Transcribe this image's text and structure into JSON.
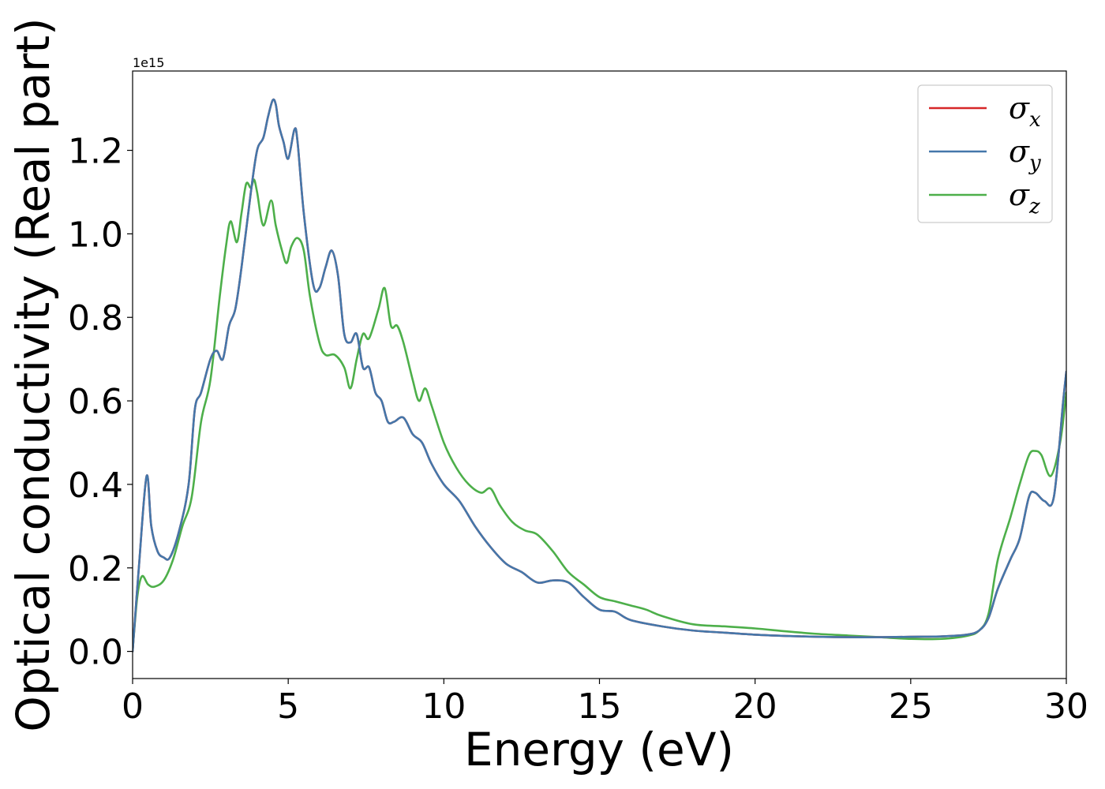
{
  "chart_data": {
    "type": "line",
    "title": "",
    "xlabel": "Energy (eV)",
    "ylabel": "Optical conductivity (Real part)",
    "y_offset_text": "1e15",
    "xlim": [
      0,
      30
    ],
    "ylim": [
      -0.065,
      1.39
    ],
    "x_ticks": [
      0,
      5,
      10,
      15,
      20,
      25,
      30
    ],
    "x_tick_labels": [
      "0",
      "5",
      "10",
      "15",
      "20",
      "25",
      "30"
    ],
    "y_ticks": [
      0.0,
      0.2,
      0.4,
      0.6,
      0.8,
      1.0,
      1.2
    ],
    "y_tick_labels": [
      "0.0",
      "0.2",
      "0.4",
      "0.6",
      "0.8",
      "1.0",
      "1.2"
    ],
    "grid": false,
    "legend_position": "top-right",
    "series": [
      {
        "name": "σx",
        "legend_symbol": "σ",
        "legend_subscript": "x",
        "color": "#d62728",
        "x": [
          0,
          0.2,
          0.45,
          0.6,
          0.8,
          1.0,
          1.2,
          1.5,
          1.8,
          2.0,
          2.2,
          2.5,
          2.7,
          2.9,
          3.1,
          3.3,
          3.5,
          3.8,
          4.0,
          4.2,
          4.35,
          4.5,
          4.6,
          4.7,
          4.85,
          5.0,
          5.2,
          5.3,
          5.5,
          5.8,
          6.0,
          6.2,
          6.4,
          6.6,
          6.8,
          7.0,
          7.2,
          7.4,
          7.6,
          7.8,
          8.0,
          8.2,
          8.4,
          8.7,
          9.0,
          9.3,
          9.6,
          10.0,
          10.5,
          11.0,
          11.5,
          12.0,
          12.5,
          13.0,
          13.5,
          14.0,
          14.5,
          15.0,
          15.5,
          16.0,
          17.0,
          18.0,
          19.0,
          20.0,
          21.0,
          22.0,
          23.0,
          24.0,
          25.0,
          26.0,
          26.8,
          27.2,
          27.5,
          27.8,
          28.2,
          28.5,
          28.8,
          29.0,
          29.3,
          29.6,
          29.9,
          30.0
        ],
        "y": [
          0.0,
          0.2,
          0.42,
          0.3,
          0.24,
          0.225,
          0.225,
          0.29,
          0.4,
          0.58,
          0.62,
          0.7,
          0.72,
          0.7,
          0.78,
          0.82,
          0.92,
          1.1,
          1.2,
          1.23,
          1.28,
          1.32,
          1.31,
          1.26,
          1.22,
          1.18,
          1.25,
          1.22,
          1.05,
          0.88,
          0.87,
          0.92,
          0.96,
          0.9,
          0.76,
          0.74,
          0.76,
          0.68,
          0.68,
          0.62,
          0.6,
          0.55,
          0.55,
          0.56,
          0.52,
          0.5,
          0.45,
          0.4,
          0.36,
          0.3,
          0.25,
          0.21,
          0.19,
          0.165,
          0.17,
          0.165,
          0.13,
          0.1,
          0.095,
          0.075,
          0.06,
          0.05,
          0.045,
          0.04,
          0.037,
          0.035,
          0.034,
          0.034,
          0.035,
          0.036,
          0.04,
          0.05,
          0.08,
          0.15,
          0.22,
          0.27,
          0.37,
          0.38,
          0.36,
          0.37,
          0.6,
          0.67
        ]
      },
      {
        "name": "σy",
        "legend_symbol": "σ",
        "legend_subscript": "y",
        "color": "#4477aa",
        "x": [
          0,
          0.2,
          0.45,
          0.6,
          0.8,
          1.0,
          1.2,
          1.5,
          1.8,
          2.0,
          2.2,
          2.5,
          2.7,
          2.9,
          3.1,
          3.3,
          3.5,
          3.8,
          4.0,
          4.2,
          4.35,
          4.5,
          4.6,
          4.7,
          4.85,
          5.0,
          5.2,
          5.3,
          5.5,
          5.8,
          6.0,
          6.2,
          6.4,
          6.6,
          6.8,
          7.0,
          7.2,
          7.4,
          7.6,
          7.8,
          8.0,
          8.2,
          8.4,
          8.7,
          9.0,
          9.3,
          9.6,
          10.0,
          10.5,
          11.0,
          11.5,
          12.0,
          12.5,
          13.0,
          13.5,
          14.0,
          14.5,
          15.0,
          15.5,
          16.0,
          17.0,
          18.0,
          19.0,
          20.0,
          21.0,
          22.0,
          23.0,
          24.0,
          25.0,
          26.0,
          26.8,
          27.2,
          27.5,
          27.8,
          28.2,
          28.5,
          28.8,
          29.0,
          29.3,
          29.6,
          29.9,
          30.0
        ],
        "y": [
          0.0,
          0.2,
          0.42,
          0.3,
          0.24,
          0.225,
          0.225,
          0.29,
          0.4,
          0.58,
          0.62,
          0.7,
          0.72,
          0.7,
          0.78,
          0.82,
          0.92,
          1.1,
          1.2,
          1.23,
          1.28,
          1.32,
          1.31,
          1.26,
          1.22,
          1.18,
          1.25,
          1.22,
          1.05,
          0.88,
          0.87,
          0.92,
          0.96,
          0.9,
          0.76,
          0.74,
          0.76,
          0.68,
          0.68,
          0.62,
          0.6,
          0.55,
          0.55,
          0.56,
          0.52,
          0.5,
          0.45,
          0.4,
          0.36,
          0.3,
          0.25,
          0.21,
          0.19,
          0.165,
          0.17,
          0.165,
          0.13,
          0.1,
          0.095,
          0.075,
          0.06,
          0.05,
          0.045,
          0.04,
          0.037,
          0.035,
          0.034,
          0.034,
          0.035,
          0.036,
          0.04,
          0.05,
          0.08,
          0.15,
          0.22,
          0.27,
          0.37,
          0.38,
          0.36,
          0.37,
          0.6,
          0.67
        ]
      },
      {
        "name": "σz",
        "legend_symbol": "σ",
        "legend_subscript": "z",
        "color": "#4daf4a",
        "x": [
          0,
          0.15,
          0.3,
          0.5,
          0.7,
          1.0,
          1.3,
          1.6,
          1.9,
          2.2,
          2.5,
          2.8,
          3.0,
          3.15,
          3.35,
          3.5,
          3.65,
          3.8,
          3.9,
          4.0,
          4.2,
          4.45,
          4.6,
          4.8,
          4.95,
          5.1,
          5.3,
          5.5,
          5.7,
          6.0,
          6.2,
          6.5,
          6.8,
          7.0,
          7.2,
          7.4,
          7.6,
          7.9,
          8.1,
          8.3,
          8.5,
          8.7,
          9.0,
          9.2,
          9.4,
          9.6,
          10.0,
          10.4,
          10.8,
          11.2,
          11.5,
          11.8,
          12.2,
          12.6,
          13.0,
          13.5,
          14.0,
          14.5,
          15.0,
          15.5,
          16.0,
          16.5,
          17.0,
          18.0,
          19.0,
          20.0,
          21.0,
          22.0,
          23.0,
          24.0,
          25.0,
          26.0,
          26.8,
          27.2,
          27.5,
          27.8,
          28.2,
          28.5,
          28.8,
          29.0,
          29.2,
          29.5,
          29.8,
          30.0
        ],
        "y": [
          0.0,
          0.13,
          0.18,
          0.16,
          0.155,
          0.17,
          0.22,
          0.3,
          0.37,
          0.55,
          0.65,
          0.85,
          0.97,
          1.03,
          0.98,
          1.05,
          1.12,
          1.11,
          1.13,
          1.1,
          1.02,
          1.08,
          1.02,
          0.96,
          0.93,
          0.97,
          0.99,
          0.96,
          0.85,
          0.74,
          0.71,
          0.71,
          0.68,
          0.63,
          0.7,
          0.76,
          0.75,
          0.82,
          0.87,
          0.78,
          0.78,
          0.74,
          0.65,
          0.6,
          0.63,
          0.59,
          0.5,
          0.44,
          0.4,
          0.38,
          0.39,
          0.35,
          0.31,
          0.29,
          0.28,
          0.24,
          0.19,
          0.16,
          0.13,
          0.12,
          0.11,
          0.1,
          0.085,
          0.065,
          0.06,
          0.055,
          0.048,
          0.042,
          0.038,
          0.034,
          0.03,
          0.03,
          0.037,
          0.05,
          0.09,
          0.22,
          0.32,
          0.4,
          0.47,
          0.48,
          0.47,
          0.42,
          0.5,
          0.62
        ]
      }
    ]
  }
}
